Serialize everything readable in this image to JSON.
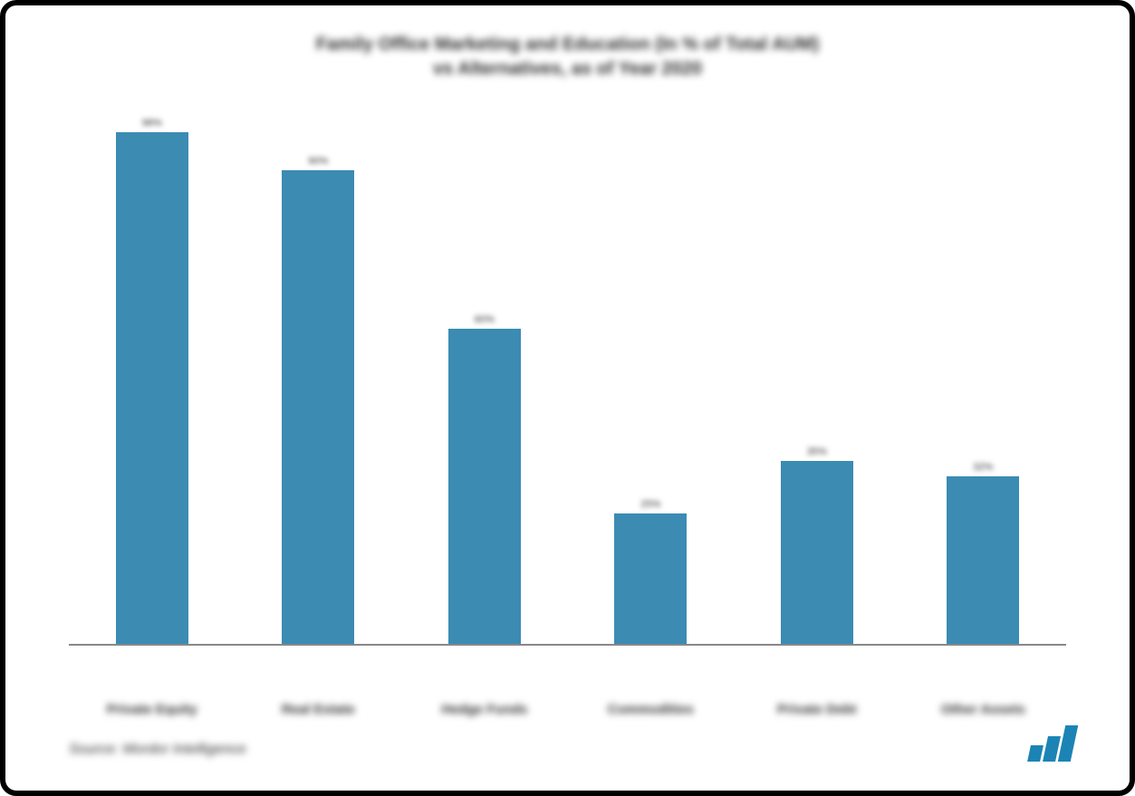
{
  "chart": {
    "type": "bar",
    "title_line1": "Family Office Marketing and Education (In % of Total AUM)",
    "title_line2": "vs Alternatives, as of Year 2020",
    "title_fontsize": 20,
    "title_color": "#2b2b2b",
    "categories": [
      "Private Equity",
      "Real Estate",
      "Hedge Funds",
      "Commodities",
      "Private Debt",
      "Other Assets"
    ],
    "values": [
      98,
      90,
      60,
      25,
      35,
      32
    ],
    "value_labels": [
      "98%",
      "90%",
      "60%",
      "25%",
      "35%",
      "32%"
    ],
    "bar_color": "#3b8bb3",
    "background_color": "#ffffff",
    "baseline_color": "#888888",
    "ylim": [
      0,
      100
    ],
    "bar_width_ratio": 0.56,
    "label_fontsize": 15,
    "label_color": "#2b2b2b",
    "value_fontsize": 11
  },
  "source_text": "Source: Mordor Intelligence",
  "source_fontsize": 16,
  "logo": {
    "name": "mordor-logo",
    "color": "#1b84b5"
  },
  "frame": {
    "border_color": "#000000",
    "border_width": 6,
    "radius": 18
  }
}
